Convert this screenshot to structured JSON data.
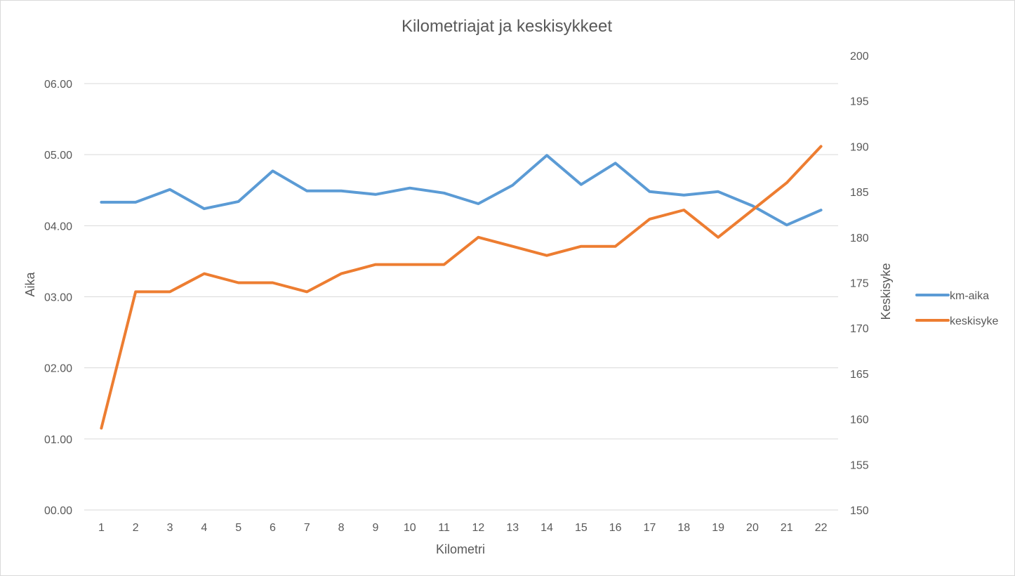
{
  "chart_data": {
    "type": "line",
    "title": "Kilometriajat ja keskisykkeet",
    "xlabel": "Kilometri",
    "ylabel_left": "Aika",
    "ylabel_right": "Keskisyke",
    "categories": [
      "1",
      "2",
      "3",
      "4",
      "5",
      "6",
      "7",
      "8",
      "9",
      "10",
      "11",
      "12",
      "13",
      "14",
      "15",
      "16",
      "17",
      "18",
      "19",
      "20",
      "21",
      "22"
    ],
    "y_left": {
      "ticks": [
        "00.00",
        "01.00",
        "02.00",
        "03.00",
        "04.00",
        "05.00",
        "06.00"
      ],
      "range": [
        0,
        6
      ]
    },
    "y_right": {
      "ticks": [
        "150",
        "155",
        "160",
        "165",
        "170",
        "175",
        "180",
        "185",
        "190",
        "195",
        "200"
      ],
      "range": [
        150,
        200
      ]
    },
    "grid": true,
    "legend_position": "right",
    "series": [
      {
        "name": "km-aika",
        "axis": "left",
        "color": "#5b9bd5",
        "values": [
          4.33,
          4.33,
          4.51,
          4.24,
          4.34,
          4.77,
          4.49,
          4.49,
          4.44,
          4.53,
          4.46,
          4.31,
          4.57,
          4.99,
          4.58,
          4.88,
          4.48,
          4.43,
          4.48,
          4.28,
          4.01,
          4.22
        ]
      },
      {
        "name": "keskisyke",
        "axis": "right",
        "color": "#ed7d31",
        "values": [
          159,
          174,
          174,
          176,
          175,
          175,
          174,
          176,
          177,
          177,
          177,
          180,
          179,
          178,
          179,
          179,
          182,
          183,
          180,
          183,
          186,
          190
        ]
      }
    ]
  }
}
